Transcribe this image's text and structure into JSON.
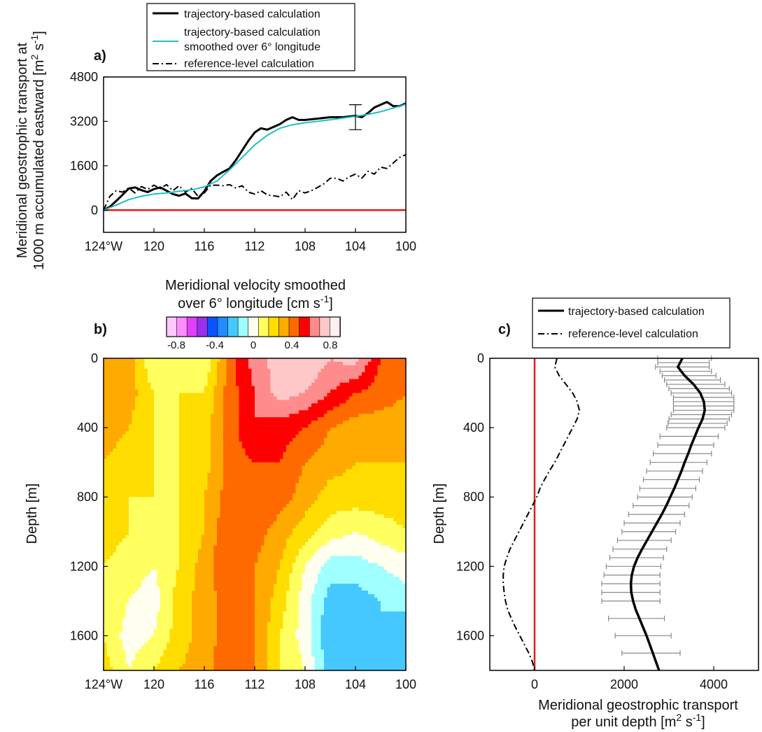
{
  "panels": {
    "a": {
      "label": "a)"
    },
    "b": {
      "label": "b)"
    },
    "c": {
      "label": "c)"
    }
  },
  "colors": {
    "trajectory": "#000000",
    "smoothed": "#1fbfc4",
    "reference": "#000000",
    "zero_line": "#e41a1c",
    "errorbar": "#8a8a8a"
  },
  "legend_a": [
    {
      "label": "trajectory-based calculation",
      "style": "solid-thick"
    },
    {
      "label": "trajectory-based calculation",
      "label2": "smoothed over 6° longitude",
      "style": "cyan"
    },
    {
      "label": "reference-level calculation",
      "style": "dashdot"
    }
  ],
  "legend_c": [
    {
      "label": "trajectory-based calculation",
      "style": "solid-thick"
    },
    {
      "label": "reference-level calculation",
      "style": "dashdot"
    }
  ],
  "colorbar": {
    "title1": "Meridional velocity smoothed",
    "title2": "over 6° longitude [cm s",
    "title_sup": "-1",
    "title_end": "]",
    "colors": [
      "#ffc8ff",
      "#ff8cff",
      "#e040fb",
      "#9b30e8",
      "#0a54ff",
      "#1f8cff",
      "#45c8ff",
      "#a0ffff",
      "#fffff0",
      "#ffff60",
      "#ffdd00",
      "#ffaa00",
      "#ff6a00",
      "#ff0000",
      "#ff8c8c",
      "#ffc8c8",
      "#fff0f0"
    ],
    "ticks": [
      "-0.8",
      "-0.4",
      "0",
      "0.4",
      "0.8"
    ]
  },
  "chart_data": [
    {
      "type": "line",
      "panel": "a",
      "ylabel1": "Meridional geostrophic transport at",
      "ylabel2": "1000 m accumulated eastward [m",
      "ylabel_sup": "2",
      "ylabel_mid": " s",
      "ylabel_sup2": "-1",
      "ylabel_end": "]",
      "xlim": [
        -124,
        -100
      ],
      "ylim": [
        -800,
        4800
      ],
      "xticks": [
        -124,
        -120,
        -116,
        -112,
        -108,
        -104,
        -100
      ],
      "xtick_labels": [
        "124°W",
        "120",
        "116",
        "112",
        "108",
        "104",
        "100"
      ],
      "yticks": [
        0,
        1600,
        3200,
        4800
      ],
      "ytick_labels": [
        "0",
        "1600",
        "3200",
        "4800"
      ],
      "series": [
        {
          "key": "trajectory",
          "x": [
            -124,
            -123.5,
            -123,
            -122.5,
            -122,
            -121.5,
            -121,
            -120.5,
            -120,
            -119.5,
            -119,
            -118.5,
            -118,
            -117.5,
            -117,
            -116.5,
            -116,
            -115.5,
            -115,
            -114.5,
            -114,
            -113.5,
            -113,
            -112.5,
            -112,
            -111.5,
            -111,
            -110.5,
            -110,
            -109.5,
            -109,
            -108.5,
            -108,
            -107,
            -106,
            -105,
            -104,
            -103.5,
            -103,
            -102.5,
            -102,
            -101.5,
            -101,
            -100.5,
            -100
          ],
          "y": [
            0,
            120,
            330,
            550,
            780,
            820,
            720,
            650,
            760,
            820,
            700,
            580,
            520,
            600,
            430,
            420,
            680,
            1050,
            1250,
            1380,
            1500,
            1800,
            2150,
            2500,
            2800,
            2950,
            2900,
            3000,
            3100,
            3250,
            3350,
            3250,
            3250,
            3300,
            3350,
            3350,
            3400,
            3350,
            3500,
            3700,
            3800,
            3900,
            3750,
            3750,
            3850
          ]
        },
        {
          "key": "smoothed",
          "x": [
            -124,
            -123,
            -122,
            -121,
            -120,
            -119,
            -118,
            -117,
            -116,
            -115,
            -114,
            -113,
            -112,
            -111,
            -110,
            -109,
            -108,
            -107,
            -106,
            -105,
            -104,
            -103,
            -102,
            -101,
            -100
          ],
          "y": [
            0,
            180,
            380,
            500,
            580,
            620,
            680,
            730,
            840,
            1050,
            1450,
            1900,
            2350,
            2700,
            2950,
            3080,
            3150,
            3200,
            3260,
            3320,
            3380,
            3450,
            3550,
            3680,
            3820
          ]
        },
        {
          "key": "reference",
          "x": [
            -124,
            -123.5,
            -123,
            -122.5,
            -122,
            -121.5,
            -121,
            -120.5,
            -120,
            -119.5,
            -119,
            -118.5,
            -118,
            -117.5,
            -117,
            -116.5,
            -116,
            -115.5,
            -115,
            -114.5,
            -114,
            -113.5,
            -113,
            -112.5,
            -112,
            -111.5,
            -111,
            -110.5,
            -110,
            -109.5,
            -109,
            -108.5,
            -108,
            -107.5,
            -107,
            -106.5,
            -106,
            -105.5,
            -105,
            -104.5,
            -104,
            -103.5,
            -103,
            -102.5,
            -102,
            -101.5,
            -101,
            -100.5,
            -100
          ],
          "y": [
            0,
            500,
            700,
            650,
            800,
            620,
            850,
            750,
            900,
            780,
            920,
            700,
            880,
            650,
            780,
            500,
            620,
            900,
            900,
            880,
            920,
            800,
            880,
            650,
            580,
            700,
            550,
            520,
            480,
            650,
            380,
            700,
            620,
            700,
            820,
            950,
            1150,
            1150,
            1050,
            1200,
            1300,
            1150,
            1400,
            1300,
            1550,
            1500,
            1700,
            1900,
            2000
          ]
        }
      ],
      "errorbar": {
        "x": -104,
        "y": 3350,
        "low": 2900,
        "high": 3800
      },
      "zero_line": 0
    },
    {
      "type": "heatmap",
      "panel": "b",
      "ylabel": "Depth [m]",
      "xlim": [
        -124,
        -100
      ],
      "ylim": [
        1800,
        0
      ],
      "xticks": [
        -124,
        -120,
        -116,
        -112,
        -108,
        -104,
        -100
      ],
      "xtick_labels": [
        "124°W",
        "120",
        "116",
        "112",
        "108",
        "104",
        "100"
      ],
      "yticks": [
        0,
        400,
        800,
        1200,
        1600
      ],
      "ytick_labels": [
        "0",
        "400",
        "800",
        "1200",
        "1600"
      ],
      "levels": [
        -0.8,
        -0.7,
        -0.6,
        -0.5,
        -0.4,
        -0.3,
        -0.2,
        -0.1,
        0,
        0.1,
        0.2,
        0.3,
        0.4,
        0.5,
        0.6,
        0.7,
        0.8
      ],
      "depths": [
        0,
        200,
        400,
        600,
        800,
        1000,
        1200,
        1400,
        1600,
        1800
      ],
      "longitudes": [
        -124,
        -122,
        -120,
        -118,
        -116,
        -114,
        -112,
        -110,
        -108,
        -106,
        -104,
        -102,
        -100
      ],
      "values": [
        [
          0.35,
          0.3,
          0.05,
          0.15,
          0.05,
          0.4,
          0.6,
          0.7,
          0.75,
          0.65,
          0.7,
          0.45,
          0.35
        ],
        [
          0.35,
          0.3,
          0.15,
          0.15,
          0.15,
          0.4,
          0.55,
          0.7,
          0.65,
          0.55,
          0.45,
          0.4,
          0.35
        ],
        [
          0.3,
          0.25,
          0.15,
          0.15,
          0.2,
          0.4,
          0.55,
          0.5,
          0.45,
          0.35,
          0.3,
          0.3,
          0.3
        ],
        [
          0.25,
          0.2,
          0.15,
          0.15,
          0.2,
          0.4,
          0.45,
          0.45,
          0.35,
          0.3,
          0.25,
          0.25,
          0.25
        ],
        [
          0.2,
          0.15,
          0.15,
          0.15,
          0.25,
          0.4,
          0.45,
          0.4,
          0.3,
          0.2,
          0.2,
          0.2,
          0.2
        ],
        [
          0.2,
          0.15,
          0.1,
          0.15,
          0.25,
          0.45,
          0.4,
          0.3,
          0.2,
          0.1,
          0.05,
          0.1,
          0.15
        ],
        [
          0.15,
          0.1,
          0.05,
          0.15,
          0.3,
          0.45,
          0.35,
          0.25,
          0.05,
          -0.1,
          -0.1,
          -0.05,
          0.0
        ],
        [
          0.15,
          0.05,
          0.0,
          0.2,
          0.3,
          0.4,
          0.35,
          0.2,
          0.0,
          -0.2,
          -0.2,
          -0.15,
          -0.1
        ],
        [
          0.15,
          0.0,
          0.05,
          0.2,
          0.3,
          0.4,
          0.35,
          0.15,
          0.0,
          -0.25,
          -0.2,
          -0.15,
          -0.25
        ],
        [
          0.2,
          0.05,
          0.15,
          0.25,
          0.3,
          0.45,
          0.35,
          0.15,
          0.05,
          -0.2,
          -0.15,
          -0.15,
          -0.25
        ]
      ]
    },
    {
      "type": "line",
      "panel": "c",
      "xlabel1": "Meridional geostrophic transport",
      "xlabel2": "per unit depth [m",
      "xlabel_sup": "2",
      "xlabel_mid": " s",
      "xlabel_sup2": "-1",
      "xlabel_end": "]",
      "ylabel": "Depth [m]",
      "xlim": [
        -1000,
        5000
      ],
      "ylim": [
        1800,
        0
      ],
      "xticks": [
        0,
        2000,
        4000
      ],
      "xtick_labels": [
        "0",
        "2000",
        "4000"
      ],
      "yticks": [
        0,
        400,
        800,
        1200,
        1600
      ],
      "ytick_labels": [
        "0",
        "400",
        "800",
        "1200",
        "1600"
      ],
      "series": [
        {
          "key": "trajectory",
          "depth": [
            0,
            50,
            100,
            150,
            200,
            250,
            300,
            350,
            400,
            450,
            500,
            550,
            600,
            650,
            700,
            750,
            800,
            850,
            900,
            950,
            1000,
            1050,
            1100,
            1150,
            1200,
            1250,
            1300,
            1350,
            1400,
            1450,
            1500,
            1550,
            1600,
            1650,
            1700,
            1750,
            1800
          ],
          "x": [
            3300,
            3200,
            3350,
            3550,
            3700,
            3780,
            3800,
            3750,
            3660,
            3580,
            3500,
            3430,
            3350,
            3280,
            3200,
            3120,
            3030,
            2940,
            2840,
            2730,
            2620,
            2510,
            2400,
            2300,
            2220,
            2170,
            2150,
            2160,
            2200,
            2260,
            2340,
            2420,
            2500,
            2570,
            2640,
            2710,
            2780
          ]
        },
        {
          "key": "reference",
          "depth": [
            0,
            50,
            100,
            150,
            200,
            250,
            300,
            350,
            400,
            450,
            500,
            550,
            600,
            650,
            700,
            750,
            800,
            850,
            900,
            950,
            1000,
            1050,
            1100,
            1150,
            1200,
            1250,
            1300,
            1350,
            1400,
            1450,
            1500,
            1550,
            1600,
            1650,
            1700,
            1750,
            1800
          ],
          "x": [
            500,
            450,
            550,
            700,
            850,
            950,
            1000,
            950,
            850,
            750,
            650,
            550,
            450,
            330,
            220,
            120,
            50,
            -50,
            -150,
            -250,
            -350,
            -450,
            -550,
            -620,
            -680,
            -700,
            -700,
            -680,
            -650,
            -600,
            -520,
            -430,
            -330,
            -230,
            -130,
            -50,
            0
          ]
        }
      ],
      "errorbars": {
        "depth": [
          0,
          25,
          50,
          75,
          100,
          125,
          150,
          175,
          200,
          225,
          250,
          275,
          300,
          325,
          350,
          375,
          400,
          450,
          500,
          550,
          600,
          650,
          700,
          750,
          800,
          850,
          900,
          950,
          1000,
          1050,
          1100,
          1150,
          1200,
          1250,
          1300,
          1350,
          1400,
          1500,
          1600,
          1700
        ],
        "low": [
          2750,
          2750,
          2700,
          2800,
          2850,
          2900,
          2950,
          3000,
          3050,
          3100,
          3100,
          3100,
          3100,
          3050,
          3000,
          2980,
          2950,
          2800,
          2750,
          2650,
          2580,
          2500,
          2430,
          2350,
          2300,
          2200,
          2100,
          2000,
          1950,
          1850,
          1750,
          1680,
          1600,
          1550,
          1500,
          1500,
          1500,
          1650,
          1800,
          1950
        ],
        "high": [
          3950,
          3900,
          3900,
          3950,
          4050,
          4150,
          4250,
          4350,
          4400,
          4450,
          4450,
          4450,
          4450,
          4400,
          4350,
          4300,
          4250,
          4100,
          4000,
          3950,
          3850,
          3750,
          3680,
          3600,
          3520,
          3450,
          3350,
          3250,
          3150,
          3050,
          2950,
          2880,
          2820,
          2800,
          2800,
          2800,
          2800,
          2900,
          3050,
          3250
        ]
      },
      "zero_line": 0
    }
  ]
}
